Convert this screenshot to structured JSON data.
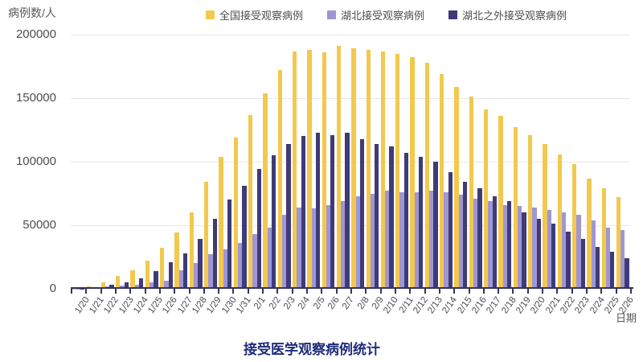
{
  "title": "接受医学观察病例统计",
  "chart_data": {
    "type": "bar",
    "title": "接受医学观察病例统计",
    "ylabel": "病例数/人",
    "xlabel": "日期",
    "ylim": [
      0,
      200000
    ],
    "yticks": [
      0,
      50000,
      100000,
      150000,
      200000
    ],
    "grid": true,
    "legend_position": "top",
    "categories": [
      "1/20",
      "1/21",
      "1/22",
      "1/23",
      "1/24",
      "1/25",
      "1/26",
      "1/27",
      "1/28",
      "1/29",
      "1/30",
      "1/31",
      "2/1",
      "2/2",
      "2/3",
      "2/4",
      "2/5",
      "2/6",
      "2/7",
      "2/8",
      "2/9",
      "2/10",
      "2/11",
      "2/12",
      "2/13",
      "2/14",
      "2/15",
      "2/16",
      "2/17",
      "2/18",
      "2/19",
      "2/20",
      "2/21",
      "2/22",
      "2/23",
      "2/24",
      "2/25",
      "2/26"
    ],
    "series": [
      {
        "name": "全国接受观察病例",
        "color": "#F2C94E",
        "values": [
          300,
          1700,
          4800,
          10000,
          14300,
          22000,
          32000,
          44000,
          60000,
          84000,
          104000,
          119000,
          137000,
          154000,
          172000,
          187000,
          188000,
          186000,
          191000,
          189000,
          188000,
          187000,
          185000,
          182000,
          178000,
          169000,
          159000,
          151000,
          141000,
          136000,
          127000,
          121000,
          114000,
          106000,
          98000,
          87000,
          79000,
          72000
        ]
      },
      {
        "name": "湖北接受观察病例",
        "color": "#9E97D3",
        "values": [
          100,
          500,
          1700,
          2300,
          3400,
          4800,
          6300,
          14500,
          20000,
          27000,
          31000,
          36000,
          43000,
          48000,
          58000,
          64000,
          63000,
          66000,
          69000,
          73000,
          75000,
          77000,
          76000,
          76000,
          77000,
          76000,
          74000,
          71000,
          69000,
          66000,
          65000,
          64000,
          62000,
          60000,
          58000,
          54000,
          48000,
          46000
        ]
      },
      {
        "name": "湖北之外接受观察病例",
        "color": "#3F3B78",
        "values": [
          200,
          1000,
          3000,
          5000,
          8000,
          14000,
          21000,
          28000,
          39000,
          55000,
          70000,
          81000,
          94000,
          105000,
          114000,
          120000,
          123000,
          121000,
          123000,
          118000,
          114000,
          112000,
          107000,
          104000,
          100000,
          92000,
          84000,
          79000,
          73000,
          69000,
          60000,
          55000,
          51000,
          45000,
          39000,
          33000,
          29000,
          24000
        ]
      }
    ]
  },
  "colors": {
    "axis_text": "#4D4D4D",
    "title_text": "#1F2C7C",
    "gridline": "#E7E7E7",
    "axis_line": "#34345C",
    "background": "#FFFFFF"
  }
}
